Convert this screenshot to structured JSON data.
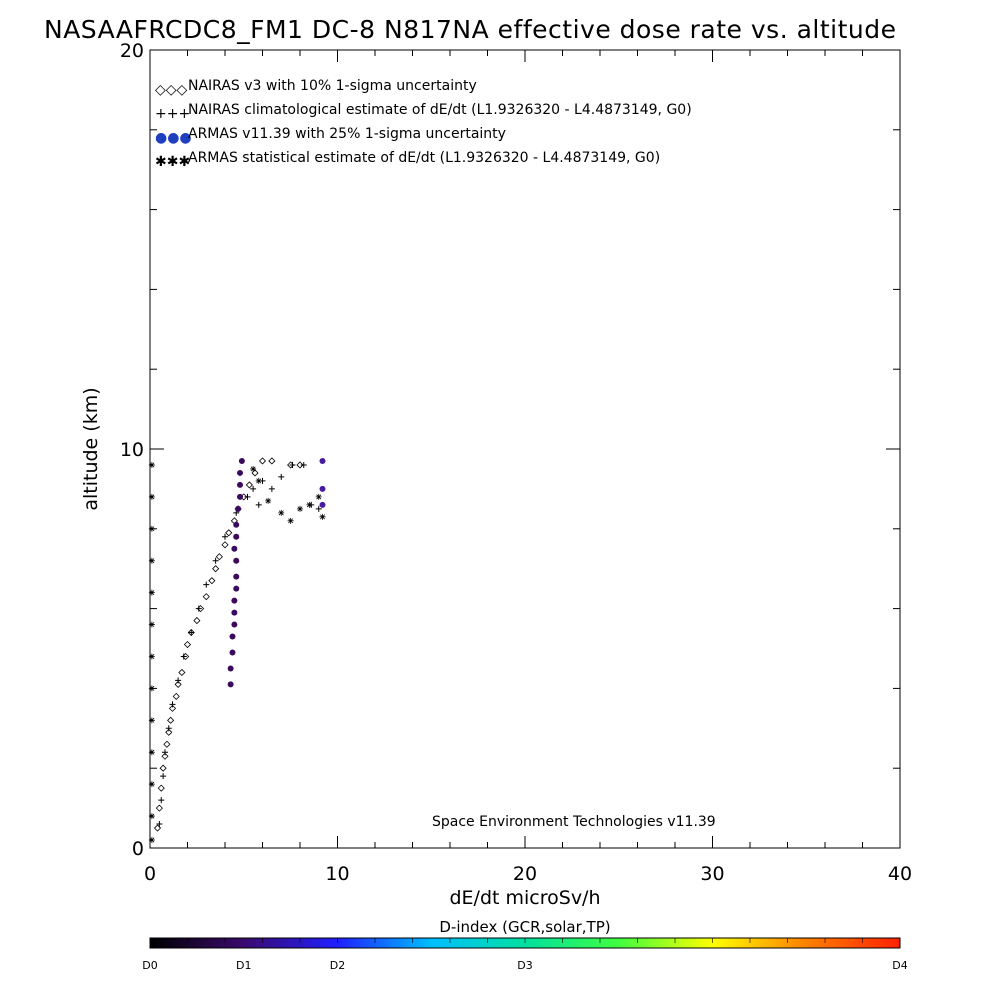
{
  "chart_data": {
    "type": "scatter",
    "title": "NASAAFRCDC8_FM1 DC-8   N817NA effective dose rate vs. altitude",
    "xlabel": "dE/dt microSv/h",
    "ylabel": "altitude (km)",
    "xlim": [
      0,
      40
    ],
    "ylim": [
      0,
      20
    ],
    "x_ticks": [
      "0",
      "10",
      "20",
      "30",
      "40"
    ],
    "y_ticks": [
      "0",
      "10",
      "20"
    ],
    "grid": false,
    "legend_position": "top-left",
    "credit": "Space Environment Technologies v11.39",
    "colors": {
      "frame": "#000000",
      "armas": "#3a0a5e",
      "armas_bright": "#4a1aa0"
    },
    "legend": [
      {
        "marker": "◇◇◇",
        "label": "NAIRAS v3 with 10% 1-sigma uncertainty"
      },
      {
        "marker": "+++",
        "label": "NAIRAS climatological estimate of dE/dt (L1.9326320 - L4.4873149, G0)"
      },
      {
        "marker": "●●●",
        "label": "ARMAS v11.39 with 25% 1-sigma uncertainty"
      },
      {
        "marker": "✱✱✱",
        "label": "ARMAS statistical estimate of dE/dt (L1.9326320 - L4.4873149, G0)"
      }
    ],
    "series": [
      {
        "name": "NAIRAS v3 with 10% 1-sigma uncertainty",
        "marker": "diamond",
        "points": [
          [
            0.4,
            0.5
          ],
          [
            0.5,
            1.0
          ],
          [
            0.6,
            1.5
          ],
          [
            0.7,
            2.0
          ],
          [
            0.8,
            2.3
          ],
          [
            0.9,
            2.6
          ],
          [
            1.0,
            2.9
          ],
          [
            1.1,
            3.2
          ],
          [
            1.2,
            3.5
          ],
          [
            1.4,
            3.8
          ],
          [
            1.5,
            4.1
          ],
          [
            1.7,
            4.4
          ],
          [
            1.9,
            4.8
          ],
          [
            2.0,
            5.1
          ],
          [
            2.2,
            5.4
          ],
          [
            2.5,
            5.7
          ],
          [
            2.7,
            6.0
          ],
          [
            3.0,
            6.3
          ],
          [
            3.3,
            6.7
          ],
          [
            3.5,
            7.0
          ],
          [
            3.7,
            7.3
          ],
          [
            4.0,
            7.6
          ],
          [
            4.2,
            7.9
          ],
          [
            4.5,
            8.2
          ],
          [
            4.7,
            8.5
          ],
          [
            5.0,
            8.8
          ],
          [
            5.3,
            9.1
          ],
          [
            5.6,
            9.4
          ],
          [
            6.0,
            9.7
          ],
          [
            6.5,
            9.7
          ],
          [
            7.5,
            9.6
          ],
          [
            8.0,
            9.6
          ]
        ]
      },
      {
        "name": "NAIRAS climatological estimate of dE/dt (L1.9326320 - L4.4873149, G0)",
        "marker": "plus",
        "points": [
          [
            0.5,
            0.6
          ],
          [
            0.6,
            1.2
          ],
          [
            0.7,
            1.8
          ],
          [
            0.8,
            2.4
          ],
          [
            1.0,
            3.0
          ],
          [
            1.2,
            3.6
          ],
          [
            1.5,
            4.2
          ],
          [
            1.8,
            4.8
          ],
          [
            2.2,
            5.4
          ],
          [
            2.6,
            6.0
          ],
          [
            3.0,
            6.6
          ],
          [
            3.5,
            7.2
          ],
          [
            4.0,
            7.8
          ],
          [
            4.6,
            8.4
          ],
          [
            5.2,
            8.8
          ],
          [
            5.5,
            9.0
          ],
          [
            5.8,
            8.6
          ],
          [
            6.0,
            9.2
          ],
          [
            6.5,
            9.0
          ],
          [
            7.0,
            9.3
          ],
          [
            7.6,
            9.6
          ],
          [
            8.2,
            9.6
          ],
          [
            8.6,
            8.6
          ],
          [
            9.0,
            8.5
          ]
        ]
      },
      {
        "name": "ARMAS v11.39 with 25% 1-sigma uncertainty",
        "marker": "filled-circle",
        "points": [
          [
            4.3,
            4.1
          ],
          [
            4.3,
            4.5
          ],
          [
            4.4,
            4.9
          ],
          [
            4.4,
            5.3
          ],
          [
            4.5,
            5.6
          ],
          [
            4.5,
            5.9
          ],
          [
            4.5,
            6.2
          ],
          [
            4.6,
            6.5
          ],
          [
            4.6,
            6.8
          ],
          [
            4.6,
            7.2
          ],
          [
            4.5,
            7.5
          ],
          [
            4.6,
            7.8
          ],
          [
            4.6,
            8.1
          ],
          [
            4.7,
            8.5
          ],
          [
            4.8,
            8.8
          ],
          [
            4.8,
            9.1
          ],
          [
            4.8,
            9.4
          ],
          [
            4.9,
            9.7
          ],
          [
            9.2,
            9.7
          ],
          [
            9.2,
            9.0
          ],
          [
            9.2,
            8.6
          ]
        ]
      },
      {
        "name": "ARMAS statistical estimate of dE/dt (L1.9326320 - L4.4873149, G0)",
        "marker": "asterisk",
        "points": [
          [
            0.1,
            0.2
          ],
          [
            0.1,
            0.8
          ],
          [
            0.1,
            1.6
          ],
          [
            0.1,
            2.4
          ],
          [
            0.1,
            3.2
          ],
          [
            0.1,
            4.0
          ],
          [
            0.1,
            4.8
          ],
          [
            0.1,
            5.6
          ],
          [
            0.1,
            6.4
          ],
          [
            0.1,
            7.2
          ],
          [
            0.1,
            8.0
          ],
          [
            0.1,
            8.8
          ],
          [
            0.1,
            9.6
          ],
          [
            5.5,
            9.5
          ],
          [
            5.8,
            9.2
          ],
          [
            6.3,
            8.7
          ],
          [
            7.0,
            8.4
          ],
          [
            7.5,
            8.2
          ],
          [
            8.0,
            8.5
          ],
          [
            8.5,
            8.6
          ],
          [
            9.0,
            8.8
          ],
          [
            9.2,
            8.3
          ]
        ]
      }
    ],
    "colorbar": {
      "title": "D-index (GCR,solar,TP)",
      "ticks": [
        {
          "label": "D0",
          "value": 0
        },
        {
          "label": "D1",
          "value": 0.125
        },
        {
          "label": "D2",
          "value": 0.25
        },
        {
          "label": "D3",
          "value": 0.5
        },
        {
          "label": "D4",
          "value": 1.0
        }
      ],
      "gradient": [
        "#000000",
        "#3a0a6e",
        "#1f1fff",
        "#00bfff",
        "#00e0a0",
        "#40ff40",
        "#ffff00",
        "#ff8000",
        "#ff2000"
      ]
    }
  }
}
